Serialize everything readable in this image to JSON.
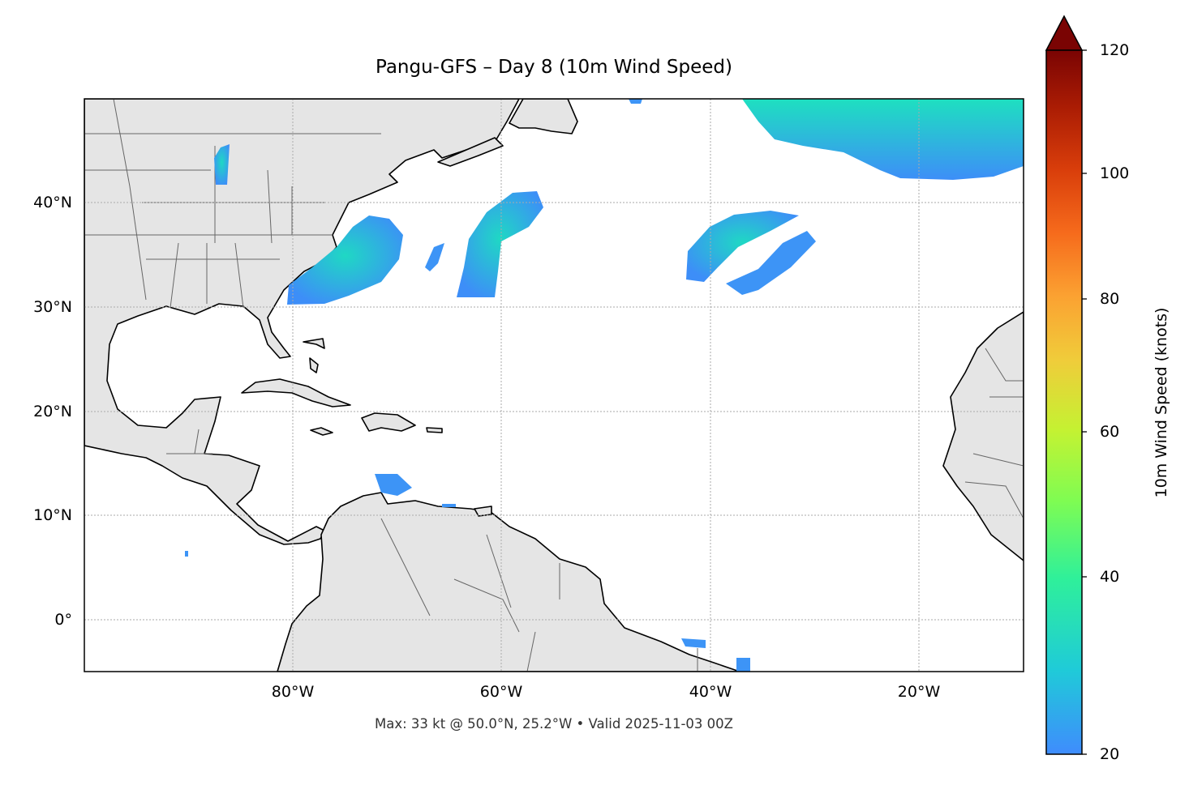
{
  "title": "Pangu-GFS – Day 8 (10m Wind Speed)",
  "footer": "Max: 33 kt @ 50.0°N, 25.2°W • Valid 2025-11-03 00Z",
  "map": {
    "extent": {
      "lon_min": -100,
      "lon_max": -10,
      "lat_min": -5,
      "lat_max": 50
    },
    "x_ticks": [
      "80°W",
      "60°W",
      "40°W",
      "20°W"
    ],
    "y_ticks": [
      "40°N",
      "30°N",
      "20°N",
      "10°N",
      "0°"
    ],
    "gridlines": true,
    "land_color": "#e5e5e5",
    "coastline_color": "#000000",
    "border_color": "#666666"
  },
  "colorbar": {
    "label": "10m Wind Speed (knots)",
    "ticks": [
      "20",
      "40",
      "60",
      "80",
      "100",
      "120"
    ],
    "range": [
      20,
      120
    ],
    "extend": "max",
    "colormap": "turbo"
  },
  "field": {
    "max_value_kt": 33,
    "max_location": "50.0°N, 25.2°W",
    "low_color": "#3d8ef8",
    "high_color": "#1fd8c4"
  }
}
